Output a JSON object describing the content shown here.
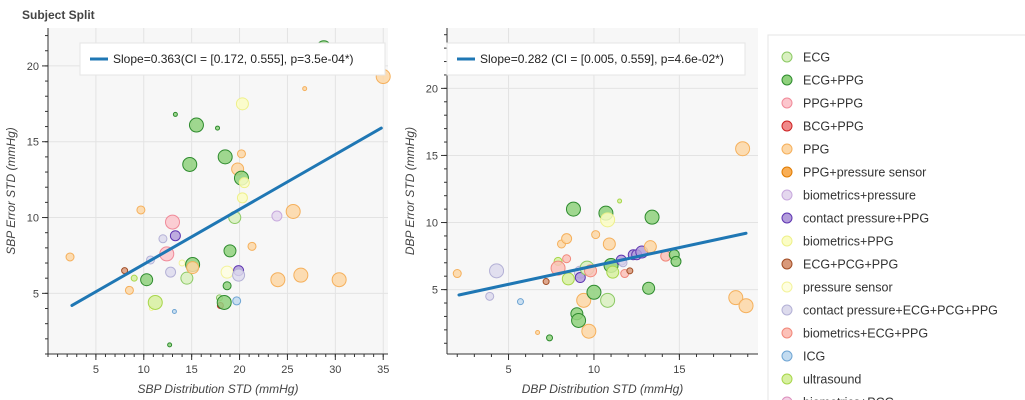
{
  "title": "Subject Split",
  "chart_data": [
    {
      "type": "scatter",
      "xlabel": "SBP Distribution STD (mmHg)",
      "ylabel": "SBP Error STD (mmHg)",
      "xlim": [
        0,
        35.5
      ],
      "ylim": [
        1,
        22.5
      ],
      "xticks": [
        5,
        10,
        15,
        20,
        25,
        30,
        35
      ],
      "yticks": [
        5,
        10,
        15,
        20
      ],
      "grid": true,
      "regression": {
        "label": "Slope=0.363(CI = [0.172, 0.555], p=3.5e-04*)",
        "color": "#1f77b4",
        "x": [
          2.5,
          34.8
        ],
        "y": [
          4.2,
          15.9
        ]
      },
      "points": [
        {
          "x": 2.3,
          "y": 7.4,
          "s": 4,
          "c": 4
        },
        {
          "x": 8.0,
          "y": 6.5,
          "s": 3,
          "c": 9
        },
        {
          "x": 8.5,
          "y": 5.2,
          "s": 4,
          "c": 4
        },
        {
          "x": 9.0,
          "y": 6.0,
          "s": 3,
          "c": 14
        },
        {
          "x": 9.7,
          "y": 10.5,
          "s": 4,
          "c": 4
        },
        {
          "x": 10.3,
          "y": 5.9,
          "s": 6,
          "c": 1
        },
        {
          "x": 10.7,
          "y": 7.2,
          "s": 4,
          "c": 11
        },
        {
          "x": 10.8,
          "y": 4.0,
          "s": 2,
          "c": 10
        },
        {
          "x": 11.2,
          "y": 4.4,
          "s": 7,
          "c": 14
        },
        {
          "x": 12.0,
          "y": 8.6,
          "s": 4,
          "c": 11
        },
        {
          "x": 12.4,
          "y": 7.6,
          "s": 7,
          "c": 2
        },
        {
          "x": 12.7,
          "y": 1.6,
          "s": 2,
          "c": 1
        },
        {
          "x": 12.8,
          "y": 6.4,
          "s": 5,
          "c": 11
        },
        {
          "x": 13.0,
          "y": 9.7,
          "s": 7,
          "c": 2
        },
        {
          "x": 13.2,
          "y": 3.8,
          "s": 2,
          "c": 13
        },
        {
          "x": 13.3,
          "y": 16.8,
          "s": 2,
          "c": 1
        },
        {
          "x": 13.3,
          "y": 8.8,
          "s": 5,
          "c": 7
        },
        {
          "x": 14.0,
          "y": 7.0,
          "s": 3,
          "c": 10
        },
        {
          "x": 14.5,
          "y": 6.0,
          "s": 6,
          "c": 0
        },
        {
          "x": 14.8,
          "y": 13.5,
          "s": 7,
          "c": 1
        },
        {
          "x": 15.1,
          "y": 6.9,
          "s": 7,
          "c": 1
        },
        {
          "x": 15.1,
          "y": 6.7,
          "s": 6,
          "c": 4
        },
        {
          "x": 15.5,
          "y": 16.1,
          "s": 7,
          "c": 1
        },
        {
          "x": 17.7,
          "y": 15.9,
          "s": 2,
          "c": 1
        },
        {
          "x": 17.9,
          "y": 4.7,
          "s": 3,
          "c": 0
        },
        {
          "x": 18.0,
          "y": 4.2,
          "s": 3,
          "c": 3
        },
        {
          "x": 18.4,
          "y": 4.4,
          "s": 7,
          "c": 1
        },
        {
          "x": 18.5,
          "y": 14.0,
          "s": 7,
          "c": 1
        },
        {
          "x": 18.7,
          "y": 6.4,
          "s": 6,
          "c": 10
        },
        {
          "x": 18.7,
          "y": 5.5,
          "s": 4,
          "c": 1
        },
        {
          "x": 19.0,
          "y": 7.8,
          "s": 6,
          "c": 1
        },
        {
          "x": 19.5,
          "y": 10.0,
          "s": 6,
          "c": 0
        },
        {
          "x": 19.7,
          "y": 4.5,
          "s": 4,
          "c": 13
        },
        {
          "x": 19.8,
          "y": 13.2,
          "s": 6,
          "c": 4
        },
        {
          "x": 19.9,
          "y": 6.5,
          "s": 5,
          "c": 7
        },
        {
          "x": 19.9,
          "y": 6.2,
          "s": 6,
          "c": 11
        },
        {
          "x": 20.2,
          "y": 12.6,
          "s": 7,
          "c": 1
        },
        {
          "x": 20.3,
          "y": 11.3,
          "s": 5,
          "c": 8
        },
        {
          "x": 20.2,
          "y": 14.2,
          "s": 4,
          "c": 4
        },
        {
          "x": 20.3,
          "y": 17.5,
          "s": 6,
          "c": 8
        },
        {
          "x": 20.5,
          "y": 12.3,
          "s": 5,
          "c": 8
        },
        {
          "x": 21.3,
          "y": 8.1,
          "s": 4,
          "c": 4
        },
        {
          "x": 23.9,
          "y": 10.1,
          "s": 5,
          "c": 6
        },
        {
          "x": 24.0,
          "y": 5.9,
          "s": 7,
          "c": 4
        },
        {
          "x": 25.6,
          "y": 10.4,
          "s": 7,
          "c": 4
        },
        {
          "x": 26.4,
          "y": 6.2,
          "s": 7,
          "c": 4
        },
        {
          "x": 26.8,
          "y": 18.5,
          "s": 2,
          "c": 4
        },
        {
          "x": 28.8,
          "y": 21.2,
          "s": 7,
          "c": 1
        },
        {
          "x": 30.4,
          "y": 5.9,
          "s": 7,
          "c": 4
        },
        {
          "x": 35.0,
          "y": 19.3,
          "s": 7,
          "c": 4
        }
      ]
    },
    {
      "type": "scatter",
      "xlabel": "DBP Distribution STD (mmHg)",
      "ylabel": "DBP Error STD (mmHg)",
      "xlim": [
        1.4,
        19.6
      ],
      "ylim": [
        0.2,
        24.5
      ],
      "xticks": [
        5,
        10,
        15
      ],
      "yticks": [
        5,
        10,
        15,
        20
      ],
      "grid": true,
      "regression": {
        "label": "Slope=0.282 (CI = [0.005, 0.559], p=4.6e-02*)",
        "color": "#1f77b4",
        "x": [
          2.1,
          18.9
        ],
        "y": [
          4.6,
          9.2
        ]
      },
      "points": [
        {
          "x": 2.0,
          "y": 6.2,
          "s": 4,
          "c": 4
        },
        {
          "x": 3.9,
          "y": 4.5,
          "s": 4,
          "c": 11
        },
        {
          "x": 4.3,
          "y": 6.4,
          "s": 7,
          "c": 11
        },
        {
          "x": 5.7,
          "y": 4.1,
          "s": 3,
          "c": 13
        },
        {
          "x": 6.7,
          "y": 1.8,
          "s": 2,
          "c": 4
        },
        {
          "x": 7.2,
          "y": 5.6,
          "s": 3,
          "c": 9
        },
        {
          "x": 7.4,
          "y": 1.4,
          "s": 3,
          "c": 1
        },
        {
          "x": 7.9,
          "y": 7.1,
          "s": 4,
          "c": 14
        },
        {
          "x": 7.9,
          "y": 6.6,
          "s": 7,
          "c": 12
        },
        {
          "x": 8.1,
          "y": 8.4,
          "s": 4,
          "c": 4
        },
        {
          "x": 8.4,
          "y": 7.3,
          "s": 4,
          "c": 12
        },
        {
          "x": 8.4,
          "y": 8.8,
          "s": 5,
          "c": 4
        },
        {
          "x": 8.5,
          "y": 5.8,
          "s": 6,
          "c": 14
        },
        {
          "x": 8.8,
          "y": 11.0,
          "s": 7,
          "c": 1
        },
        {
          "x": 9.0,
          "y": 3.2,
          "s": 6,
          "c": 1
        },
        {
          "x": 9.1,
          "y": 2.7,
          "s": 7,
          "c": 1
        },
        {
          "x": 9.2,
          "y": 6.3,
          "s": 6,
          "c": 11
        },
        {
          "x": 9.2,
          "y": 5.9,
          "s": 5,
          "c": 7
        },
        {
          "x": 9.4,
          "y": 4.2,
          "s": 7,
          "c": 4
        },
        {
          "x": 9.6,
          "y": 6.6,
          "s": 7,
          "c": 0
        },
        {
          "x": 9.7,
          "y": 1.9,
          "s": 7,
          "c": 4
        },
        {
          "x": 9.8,
          "y": 6.4,
          "s": 6,
          "c": 12
        },
        {
          "x": 10.0,
          "y": 4.8,
          "s": 7,
          "c": 1
        },
        {
          "x": 10.1,
          "y": 9.1,
          "s": 4,
          "c": 4
        },
        {
          "x": 10.7,
          "y": 10.7,
          "s": 7,
          "c": 1
        },
        {
          "x": 10.8,
          "y": 10.2,
          "s": 7,
          "c": 8
        },
        {
          "x": 10.8,
          "y": 4.2,
          "s": 7,
          "c": 0
        },
        {
          "x": 10.9,
          "y": 8.4,
          "s": 6,
          "c": 4
        },
        {
          "x": 11.0,
          "y": 6.8,
          "s": 7,
          "c": 1
        },
        {
          "x": 11.1,
          "y": 6.3,
          "s": 6,
          "c": 14
        },
        {
          "x": 11.5,
          "y": 11.6,
          "s": 2,
          "c": 14
        },
        {
          "x": 11.6,
          "y": 7.2,
          "s": 5,
          "c": 7
        },
        {
          "x": 11.7,
          "y": 7.0,
          "s": 4,
          "c": 11
        },
        {
          "x": 11.8,
          "y": 6.2,
          "s": 4,
          "c": 12
        },
        {
          "x": 12.1,
          "y": 6.4,
          "s": 3,
          "c": 9
        },
        {
          "x": 12.3,
          "y": 7.6,
          "s": 5,
          "c": 7
        },
        {
          "x": 12.5,
          "y": 7.6,
          "s": 5,
          "c": 7
        },
        {
          "x": 12.8,
          "y": 7.8,
          "s": 6,
          "c": 7
        },
        {
          "x": 13.2,
          "y": 5.1,
          "s": 6,
          "c": 1
        },
        {
          "x": 13.3,
          "y": 8.2,
          "s": 6,
          "c": 4
        },
        {
          "x": 13.4,
          "y": 10.4,
          "s": 7,
          "c": 1
        },
        {
          "x": 14.2,
          "y": 7.5,
          "s": 5,
          "c": 12
        },
        {
          "x": 14.7,
          "y": 7.6,
          "s": 5,
          "c": 1
        },
        {
          "x": 14.8,
          "y": 7.1,
          "s": 5,
          "c": 1
        },
        {
          "x": 18.3,
          "y": 4.4,
          "s": 7,
          "c": 4
        },
        {
          "x": 18.7,
          "y": 15.5,
          "s": 7,
          "c": 4
        },
        {
          "x": 18.9,
          "y": 3.8,
          "s": 7,
          "c": 4
        }
      ]
    }
  ],
  "legend": {
    "placement": "right",
    "items": [
      {
        "label": "ECG",
        "fill": "#d9f0c0",
        "stroke": "#8cc965"
      },
      {
        "label": "ECG+PPG",
        "fill": "#8fd17c",
        "stroke": "#2e8b2e"
      },
      {
        "label": "PPG+PPG",
        "fill": "#fcc6cd",
        "stroke": "#f08a99"
      },
      {
        "label": "BCG+PPG",
        "fill": "#f08a8a",
        "stroke": "#cc2222"
      },
      {
        "label": "PPG",
        "fill": "#fdd7a6",
        "stroke": "#f5b05c"
      },
      {
        "label": "PPG+pressure sensor",
        "fill": "#f9ae55",
        "stroke": "#e07b00"
      },
      {
        "label": "biometrics+pressure",
        "fill": "#e4d7ee",
        "stroke": "#c7a8dd"
      },
      {
        "label": "contact pressure+PPG",
        "fill": "#b39ddb",
        "stroke": "#5e35b1"
      },
      {
        "label": "biometrics+PPG",
        "fill": "#fbfdc4",
        "stroke": "#eef08a"
      },
      {
        "label": "ECG+PCG+PPG",
        "fill": "#d9997a",
        "stroke": "#a14d25"
      },
      {
        "label": "pressure sensor",
        "fill": "#fefee0",
        "stroke": "#f3f39b"
      },
      {
        "label": "contact pressure+ECG+PCG+PPG",
        "fill": "#dddbed",
        "stroke": "#b4b1d6"
      },
      {
        "label": "biometrics+ECG+PPG",
        "fill": "#fcc1b8",
        "stroke": "#f1877a"
      },
      {
        "label": "ICG",
        "fill": "#c2dbf0",
        "stroke": "#6fa5d3"
      },
      {
        "label": "ultrasound",
        "fill": "#d7f0a0",
        "stroke": "#a7d64a"
      },
      {
        "label": "biometrics+PCG",
        "fill": "#f3d0e4",
        "stroke": "#dc8fbd"
      }
    ]
  }
}
